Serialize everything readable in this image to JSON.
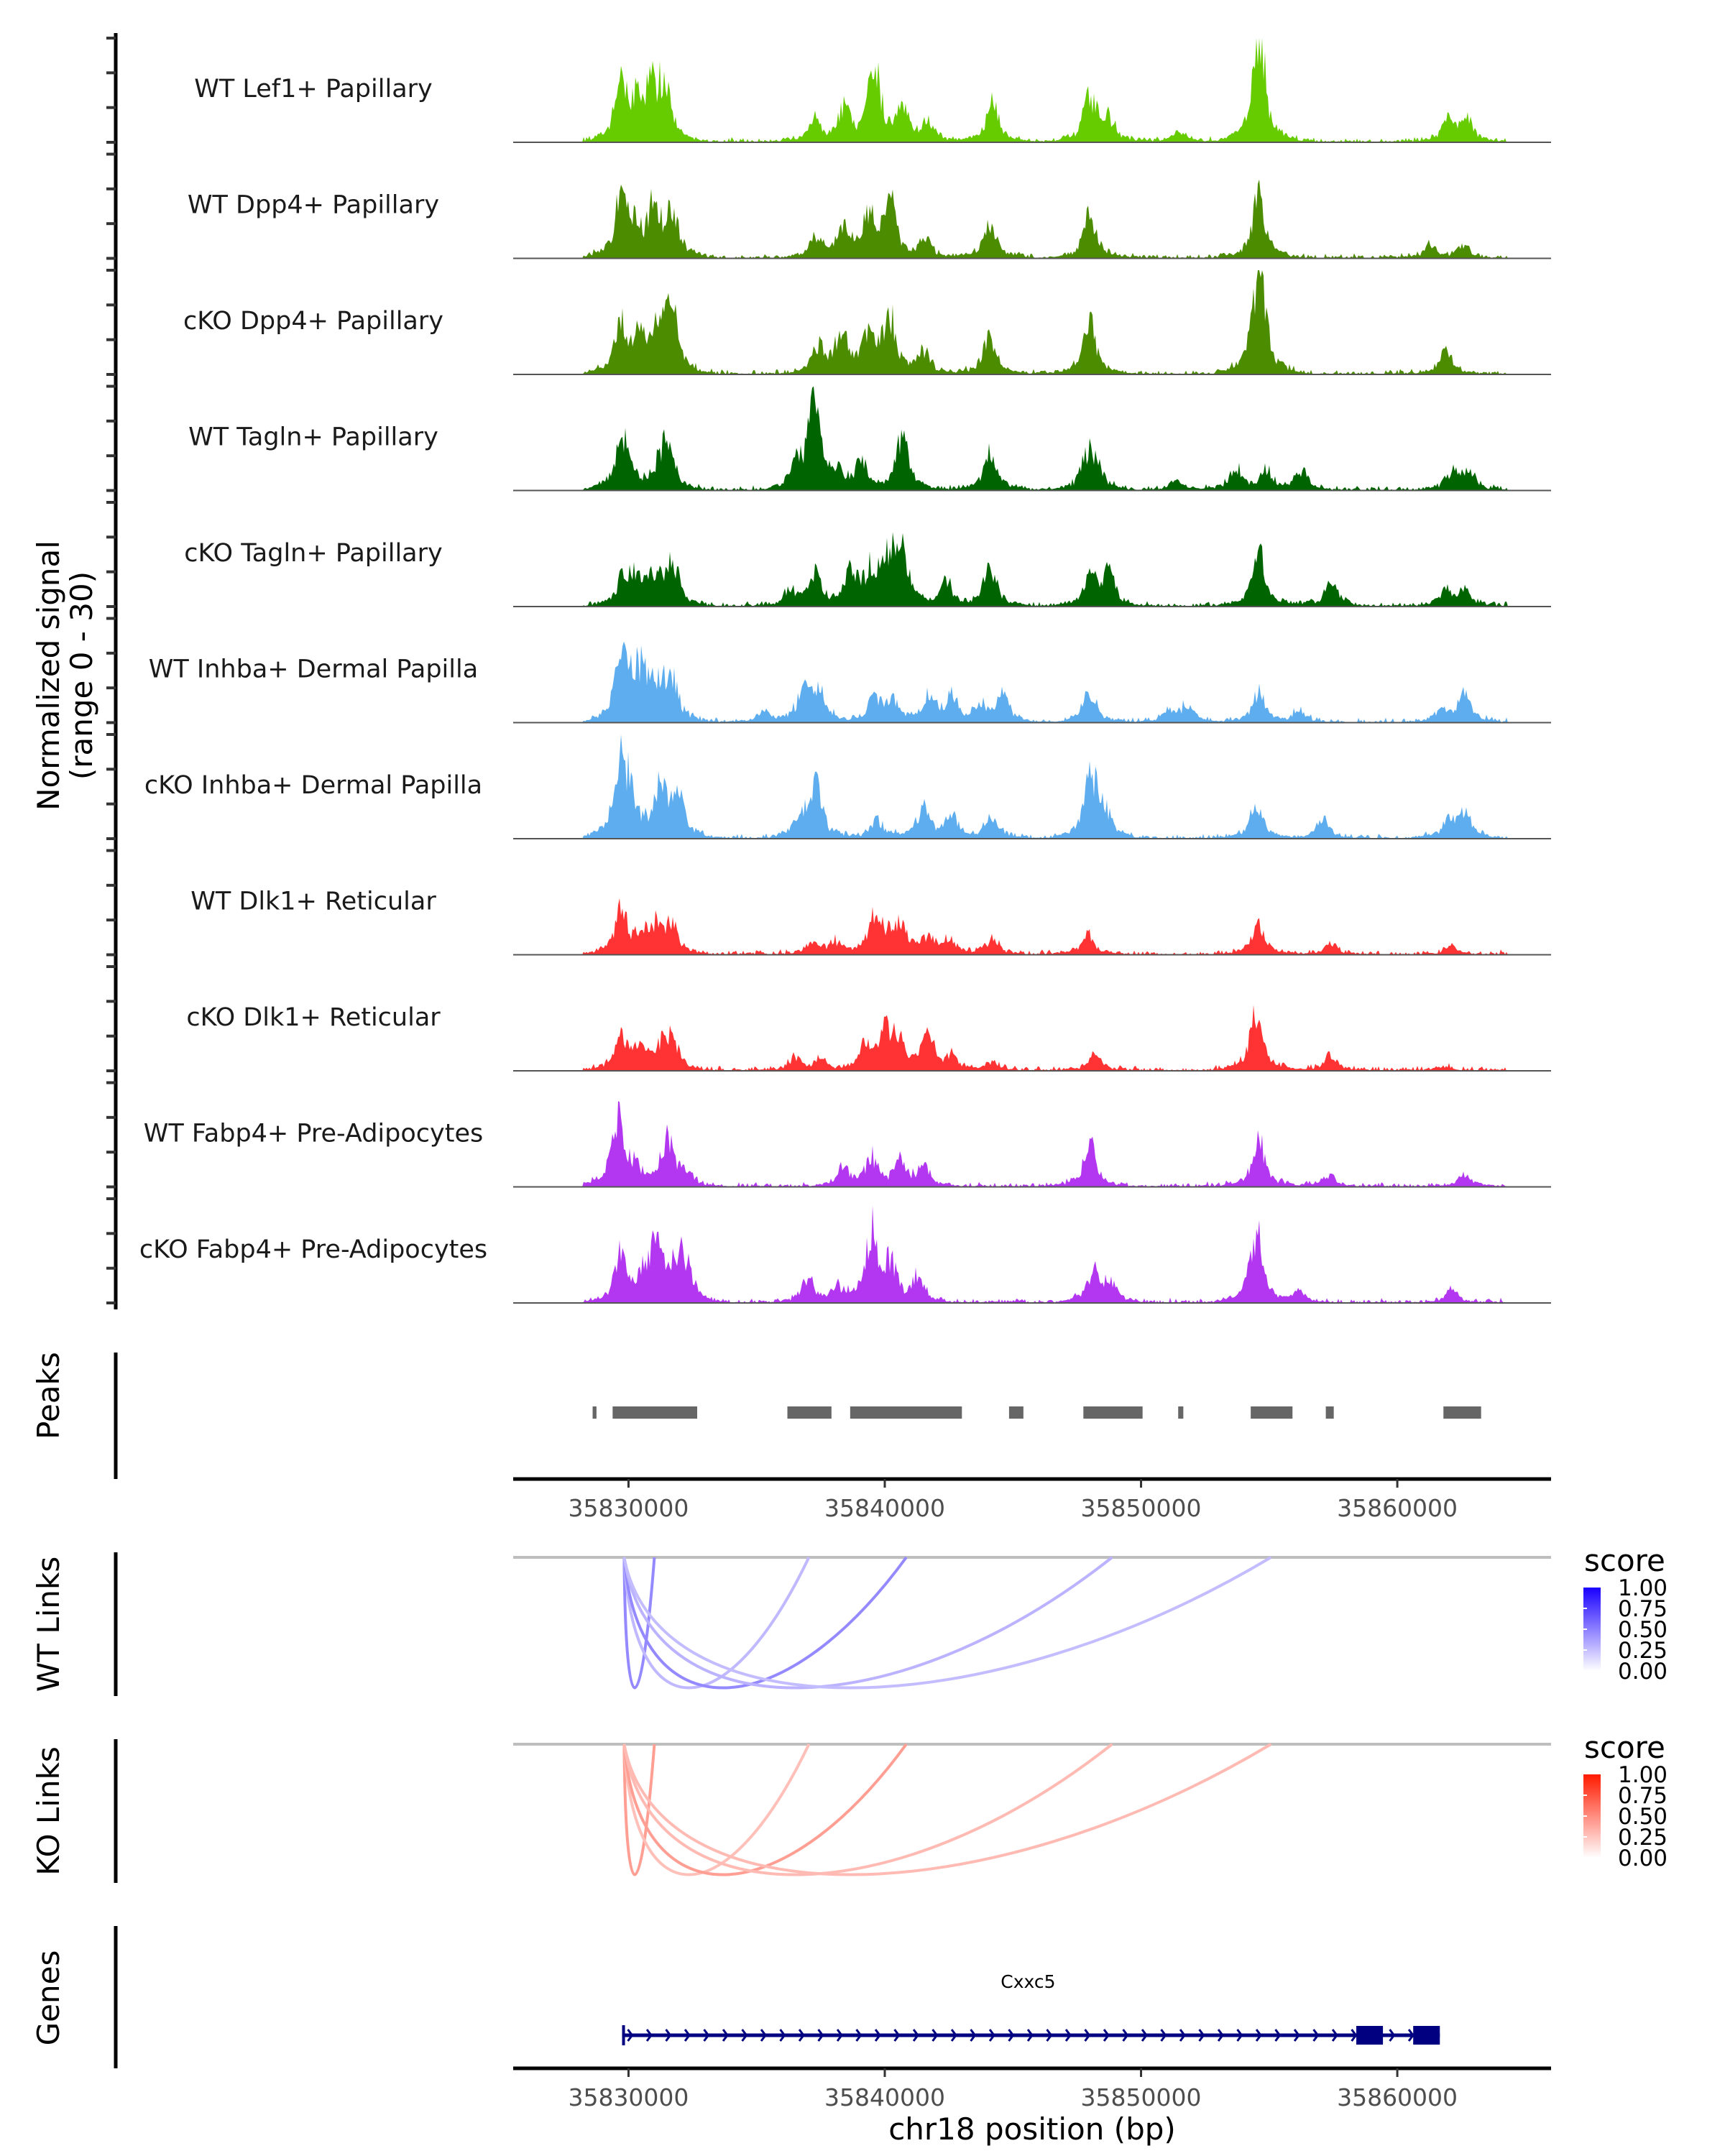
{
  "chart_data": {
    "type": "area",
    "title": "",
    "region": {
      "chrom": "chr18",
      "start": 35825500,
      "end": 35866000
    },
    "ylabel": "Normalized signal\n(range 0 - 30)",
    "ylabel_lines": [
      "Normalized signal",
      "(range 0 - 30)"
    ],
    "ylim": [
      0,
      30
    ],
    "xlabel": "chr18 position (bp)",
    "xticks": [
      35830000,
      35840000,
      35850000,
      35860000
    ],
    "xtick_labels": [
      "35830000",
      "35840000",
      "35850000",
      "35860000"
    ],
    "coverage_tracks": [
      {
        "name": "WT Lef1+ Papillary",
        "color": "#66CC00",
        "peaks": [
          [
            35829700,
            14
          ],
          [
            35830300,
            9
          ],
          [
            35830900,
            12
          ],
          [
            35831400,
            13
          ],
          [
            35837200,
            6
          ],
          [
            35838400,
            8
          ],
          [
            35839600,
            18
          ],
          [
            35840700,
            10
          ],
          [
            35841700,
            5
          ],
          [
            35844200,
            10
          ],
          [
            35848000,
            11
          ],
          [
            35848700,
            6
          ],
          [
            35851500,
            3
          ],
          [
            35854600,
            29
          ],
          [
            35862000,
            5
          ],
          [
            35862700,
            6
          ]
        ]
      },
      {
        "name": "WT Dpp4+ Papillary",
        "color": "#4C8C00",
        "peaks": [
          [
            35829700,
            15
          ],
          [
            35830200,
            7
          ],
          [
            35831000,
            12
          ],
          [
            35831700,
            12
          ],
          [
            35837300,
            5
          ],
          [
            35838400,
            8
          ],
          [
            35839400,
            11
          ],
          [
            35840200,
            14
          ],
          [
            35841600,
            5
          ],
          [
            35844100,
            9
          ],
          [
            35848000,
            11
          ],
          [
            35854600,
            16
          ],
          [
            35861300,
            3
          ],
          [
            35862600,
            3
          ]
        ]
      },
      {
        "name": "cKO Dpp4+ Papillary",
        "color": "#4C8C00",
        "peaks": [
          [
            35829700,
            13
          ],
          [
            35830400,
            9
          ],
          [
            35831200,
            11
          ],
          [
            35831700,
            16
          ],
          [
            35837400,
            7
          ],
          [
            35838300,
            10
          ],
          [
            35839400,
            11
          ],
          [
            35840200,
            14
          ],
          [
            35841500,
            6
          ],
          [
            35844100,
            10
          ],
          [
            35848000,
            13
          ],
          [
            35854600,
            30
          ],
          [
            35861900,
            6
          ]
        ]
      },
      {
        "name": "WT Tagln+ Papillary",
        "color": "#006400",
        "peaks": [
          [
            35829700,
            11
          ],
          [
            35830000,
            6
          ],
          [
            35831300,
            8
          ],
          [
            35831600,
            7
          ],
          [
            35836600,
            6
          ],
          [
            35837300,
            25
          ],
          [
            35838200,
            3
          ],
          [
            35839100,
            7
          ],
          [
            35840700,
            14
          ],
          [
            35844100,
            10
          ],
          [
            35847900,
            9
          ],
          [
            35848300,
            4
          ],
          [
            35851400,
            3
          ],
          [
            35853700,
            5
          ],
          [
            35854900,
            5
          ],
          [
            35856300,
            5
          ],
          [
            35862200,
            5
          ],
          [
            35862800,
            4
          ]
        ]
      },
      {
        "name": "cKO Tagln+ Papillary",
        "color": "#006400",
        "peaks": [
          [
            35829800,
            7
          ],
          [
            35830300,
            6
          ],
          [
            35831000,
            6
          ],
          [
            35831700,
            12
          ],
          [
            35836300,
            4
          ],
          [
            35837300,
            9
          ],
          [
            35838700,
            9
          ],
          [
            35839500,
            9
          ],
          [
            35840200,
            13
          ],
          [
            35840700,
            13
          ],
          [
            35842400,
            6
          ],
          [
            35844100,
            10
          ],
          [
            35848000,
            7
          ],
          [
            35848700,
            9
          ],
          [
            35854600,
            14
          ],
          [
            35857400,
            6
          ],
          [
            35861900,
            4
          ],
          [
            35862600,
            4
          ]
        ]
      },
      {
        "name": "WT Inhba+ Dermal Papilla",
        "color": "#5EADEE",
        "peaks": [
          [
            35829700,
            15
          ],
          [
            35830200,
            10
          ],
          [
            35830600,
            8
          ],
          [
            35831200,
            9
          ],
          [
            35831700,
            10
          ],
          [
            35835300,
            3
          ],
          [
            35836800,
            7
          ],
          [
            35837400,
            9
          ],
          [
            35839600,
            6
          ],
          [
            35840200,
            6
          ],
          [
            35841700,
            7
          ],
          [
            35842600,
            7
          ],
          [
            35843700,
            4
          ],
          [
            35844600,
            7
          ],
          [
            35848000,
            8
          ],
          [
            35851100,
            3
          ],
          [
            35851800,
            4
          ],
          [
            35854600,
            8
          ],
          [
            35856200,
            3
          ],
          [
            35861700,
            3
          ],
          [
            35862600,
            7
          ]
        ]
      },
      {
        "name": "cKO Inhba+ Dermal Papilla",
        "color": "#5EADEE",
        "peaks": [
          [
            35829700,
            20
          ],
          [
            35830100,
            7
          ],
          [
            35831200,
            13
          ],
          [
            35831900,
            12
          ],
          [
            35836700,
            6
          ],
          [
            35837300,
            13
          ],
          [
            35839700,
            5
          ],
          [
            35841500,
            8
          ],
          [
            35842600,
            6
          ],
          [
            35844200,
            6
          ],
          [
            35848000,
            14
          ],
          [
            35848500,
            8
          ],
          [
            35854500,
            9
          ],
          [
            35857100,
            5
          ],
          [
            35862000,
            4
          ],
          [
            35862600,
            7
          ]
        ]
      },
      {
        "name": "WT Dlk1+ Reticular",
        "color": "#FF3333",
        "peaks": [
          [
            35829700,
            11
          ],
          [
            35830500,
            5
          ],
          [
            35831100,
            6
          ],
          [
            35831700,
            7
          ],
          [
            35837200,
            3
          ],
          [
            35838100,
            3
          ],
          [
            35839600,
            9
          ],
          [
            35840200,
            5
          ],
          [
            35840600,
            6
          ],
          [
            35841700,
            4
          ],
          [
            35842500,
            4
          ],
          [
            35844200,
            4
          ],
          [
            35847900,
            5
          ],
          [
            35854600,
            8
          ],
          [
            35857400,
            3
          ],
          [
            35862100,
            2
          ]
        ]
      },
      {
        "name": "cKO Dlk1+ Reticular",
        "color": "#FF3333",
        "peaks": [
          [
            35829700,
            8
          ],
          [
            35830400,
            5
          ],
          [
            35831200,
            5
          ],
          [
            35831700,
            8
          ],
          [
            35836500,
            3
          ],
          [
            35837500,
            3
          ],
          [
            35839300,
            7
          ],
          [
            35840000,
            9
          ],
          [
            35840500,
            7
          ],
          [
            35841700,
            9
          ],
          [
            35842600,
            4
          ],
          [
            35844200,
            2
          ],
          [
            35848200,
            4
          ],
          [
            35854500,
            15
          ],
          [
            35857400,
            4
          ],
          [
            35861800,
            1
          ]
        ]
      },
      {
        "name": "WT Fabp4+ Pre-Adipocytes",
        "color": "#B336F0",
        "peaks": [
          [
            35829600,
            17
          ],
          [
            35830200,
            4
          ],
          [
            35831500,
            12
          ],
          [
            35832200,
            4
          ],
          [
            35838400,
            5
          ],
          [
            35839500,
            7
          ],
          [
            35840600,
            6
          ],
          [
            35841500,
            5
          ],
          [
            35848000,
            11
          ],
          [
            35854600,
            12
          ],
          [
            35857300,
            3
          ],
          [
            35862600,
            3
          ]
        ]
      },
      {
        "name": "cKO Fabp4+ Pre-Adipocytes",
        "color": "#B336F0",
        "peaks": [
          [
            35829700,
            12
          ],
          [
            35830700,
            8
          ],
          [
            35831200,
            13
          ],
          [
            35831900,
            10
          ],
          [
            35832300,
            6
          ],
          [
            35837000,
            6
          ],
          [
            35838100,
            4
          ],
          [
            35839500,
            19
          ],
          [
            35840200,
            9
          ],
          [
            35841300,
            6
          ],
          [
            35848200,
            9
          ],
          [
            35848800,
            4
          ],
          [
            35854500,
            19
          ],
          [
            35856200,
            3
          ],
          [
            35862100,
            3
          ]
        ]
      }
    ],
    "peaks_track": {
      "label": "Peaks",
      "color": "#666666",
      "regions": [
        [
          35828600,
          35828750
        ],
        [
          35829380,
          35832680
        ],
        [
          35836200,
          35837920
        ],
        [
          35838650,
          35843010
        ],
        [
          35844850,
          35845410
        ],
        [
          35847750,
          35850060
        ],
        [
          35851450,
          35851650
        ],
        [
          35854280,
          35855910
        ],
        [
          35857210,
          35857520
        ],
        [
          35861800,
          35863270
        ]
      ]
    },
    "link_tracks": [
      {
        "label": "WT Links",
        "legend_title": "score",
        "low_color": "#FFFFFF",
        "high_color": "#1A00FF",
        "legend_ticks": [
          "1.00",
          "0.75",
          "0.50",
          "0.25",
          "0.00"
        ],
        "links": [
          {
            "start": 35829830,
            "end": 35831010,
            "score": 0.55
          },
          {
            "start": 35829830,
            "end": 35837040,
            "score": 0.3
          },
          {
            "start": 35829830,
            "end": 35840840,
            "score": 0.55
          },
          {
            "start": 35829830,
            "end": 35848870,
            "score": 0.33
          },
          {
            "start": 35829830,
            "end": 35855070,
            "score": 0.28
          }
        ]
      },
      {
        "label": "KO Links",
        "legend_title": "score",
        "low_color": "#FFFFFF",
        "high_color": "#FF1A00",
        "legend_ticks": [
          "1.00",
          "0.75",
          "0.50",
          "0.25",
          "0.00"
        ],
        "links": [
          {
            "start": 35829830,
            "end": 35831010,
            "score": 0.5
          },
          {
            "start": 35829830,
            "end": 35837040,
            "score": 0.3
          },
          {
            "start": 35829830,
            "end": 35840840,
            "score": 0.5
          },
          {
            "start": 35829830,
            "end": 35848870,
            "score": 0.33
          },
          {
            "start": 35829830,
            "end": 35855070,
            "score": 0.33
          }
        ]
      }
    ],
    "genes_track": {
      "label": "Genes",
      "color": "#000080",
      "genes": [
        {
          "name": "Cxxc5",
          "strand": "+",
          "start": 35829750,
          "end": 35861660,
          "exons": [
            [
              35829750,
              35829800
            ],
            [
              35858400,
              35859440
            ],
            [
              35860620,
              35861660
            ]
          ]
        }
      ]
    }
  }
}
